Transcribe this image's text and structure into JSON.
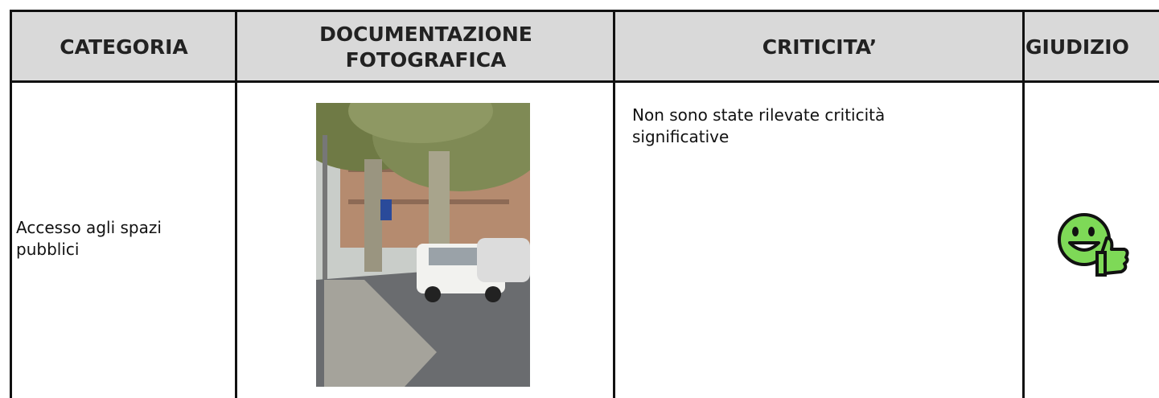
{
  "table": {
    "headers": [
      "CATEGORIA",
      "DOCUMENTAZIONE FOTOGRAFICA",
      "CRITICITA’",
      "GIUDIZIO"
    ],
    "rows": [
      [
        "Accesso agli spazi pubblici",
        null,
        "Non sono state rilevate criticità significative",
        null
      ]
    ]
  }
}
